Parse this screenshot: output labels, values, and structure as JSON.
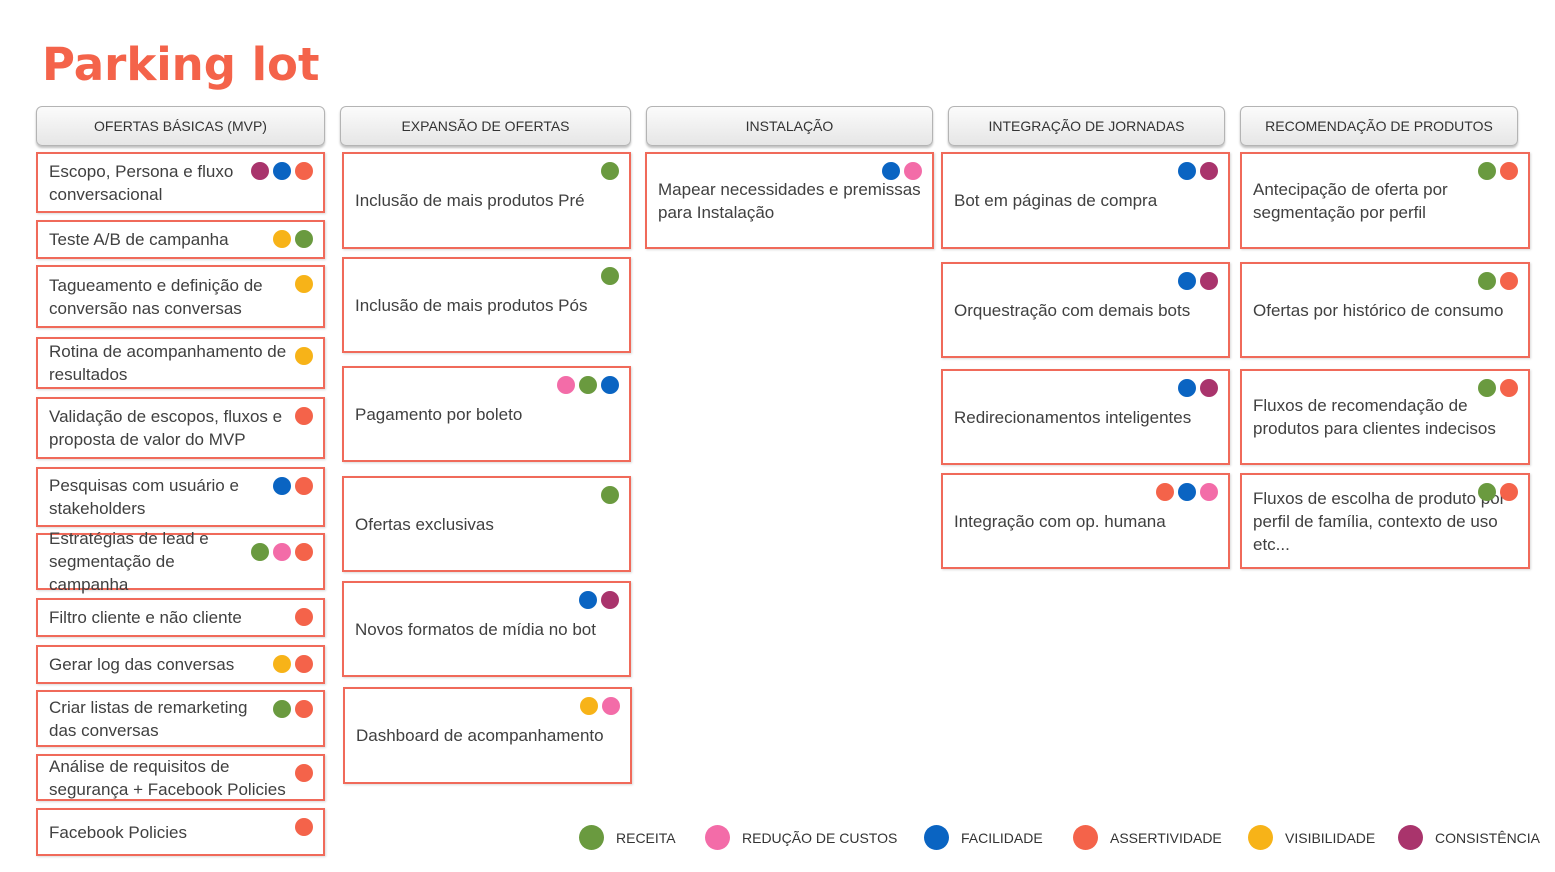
{
  "title": "Parking lot",
  "colors": {
    "receita": "#6a9a3f",
    "reducao": "#f36ca8",
    "facilidade": "#0a64c2",
    "assertividade": "#f4634a",
    "visibilidade": "#f7b318",
    "consistencia": "#a9346c"
  },
  "columns": [
    {
      "header": "OFERTAS BÁSICAS (MVP)",
      "cards": [
        {
          "text": "Escopo, Persona e fluxo conversacional",
          "tags": [
            "consistencia",
            "facilidade",
            "assertividade"
          ]
        },
        {
          "text": "Teste A/B de campanha",
          "tags": [
            "visibilidade",
            "receita"
          ]
        },
        {
          "text": "Tagueamento e definição de conversão nas conversas",
          "tags": [
            "visibilidade"
          ]
        },
        {
          "text": "Rotina de acompanhamento de resultados",
          "tags": [
            "visibilidade"
          ]
        },
        {
          "text": "Validação de escopos, fluxos e proposta de valor do MVP",
          "tags": [
            "assertividade"
          ]
        },
        {
          "text": "Pesquisas com usuário e stakeholders",
          "tags": [
            "facilidade",
            "assertividade"
          ]
        },
        {
          "text": "Estratégias de lead e segmentação de campanha",
          "tags": [
            "receita",
            "reducao",
            "assertividade"
          ]
        },
        {
          "text": "Filtro cliente e não cliente",
          "tags": [
            "assertividade"
          ]
        },
        {
          "text": "Gerar log das conversas",
          "tags": [
            "visibilidade",
            "assertividade"
          ]
        },
        {
          "text": "Criar listas de remarketing das conversas",
          "tags": [
            "receita",
            "assertividade"
          ]
        },
        {
          "text": "Análise de requisitos de segurança + Facebook Policies",
          "tags": [
            "assertividade"
          ]
        },
        {
          "text": "Facebook Policies",
          "tags": [
            "assertividade"
          ]
        }
      ]
    },
    {
      "header": "EXPANSÃO DE OFERTAS",
      "cards": [
        {
          "text": "Inclusão de mais produtos Pré",
          "tags": [
            "receita"
          ]
        },
        {
          "text": "Inclusão de mais produtos Pós",
          "tags": [
            "receita"
          ]
        },
        {
          "text": "Pagamento por boleto",
          "tags": [
            "reducao",
            "receita",
            "facilidade"
          ]
        },
        {
          "text": "Ofertas exclusivas",
          "tags": [
            "receita"
          ]
        },
        {
          "text": "Novos formatos de mídia no bot",
          "tags": [
            "facilidade",
            "consistencia"
          ]
        },
        {
          "text": "Dashboard de acompanhamento",
          "tags": [
            "visibilidade",
            "reducao"
          ]
        }
      ]
    },
    {
      "header": "INSTALAÇÃO",
      "cards": [
        {
          "text": "Mapear necessidades e premissas para Instalação",
          "tags": [
            "facilidade",
            "reducao"
          ]
        }
      ]
    },
    {
      "header": "INTEGRAÇÃO DE JORNADAS",
      "cards": [
        {
          "text": "Bot em páginas de compra",
          "tags": [
            "facilidade",
            "consistencia"
          ]
        },
        {
          "text": "Orquestração com demais bots",
          "tags": [
            "facilidade",
            "consistencia"
          ]
        },
        {
          "text": "Redirecionamentos inteligentes",
          "tags": [
            "facilidade",
            "consistencia"
          ]
        },
        {
          "text": "Integração com op. humana",
          "tags": [
            "assertividade",
            "facilidade",
            "reducao"
          ]
        }
      ]
    },
    {
      "header": "RECOMENDAÇÃO DE PRODUTOS",
      "cards": [
        {
          "text": "Antecipação de oferta por segmentação por perfil",
          "tags": [
            "receita",
            "assertividade"
          ]
        },
        {
          "text": "Ofertas por histórico de consumo",
          "tags": [
            "receita",
            "assertividade"
          ]
        },
        {
          "text": "Fluxos de recomendação de produtos para clientes indecisos",
          "tags": [
            "receita",
            "assertividade"
          ]
        },
        {
          "text": "Fluxos de escolha de produto por perfil de família, contexto de uso etc...",
          "tags": [
            "receita",
            "assertividade"
          ]
        }
      ]
    }
  ],
  "legend": [
    {
      "key": "receita",
      "label": "RECEITA"
    },
    {
      "key": "reducao",
      "label": "REDUÇÃO DE CUSTOS"
    },
    {
      "key": "facilidade",
      "label": "FACILIDADE"
    },
    {
      "key": "assertividade",
      "label": "ASSERTIVIDADE"
    },
    {
      "key": "visibilidade",
      "label": "VISIBILIDADE"
    },
    {
      "key": "consistencia",
      "label": "CONSISTÊNCIA"
    }
  ]
}
